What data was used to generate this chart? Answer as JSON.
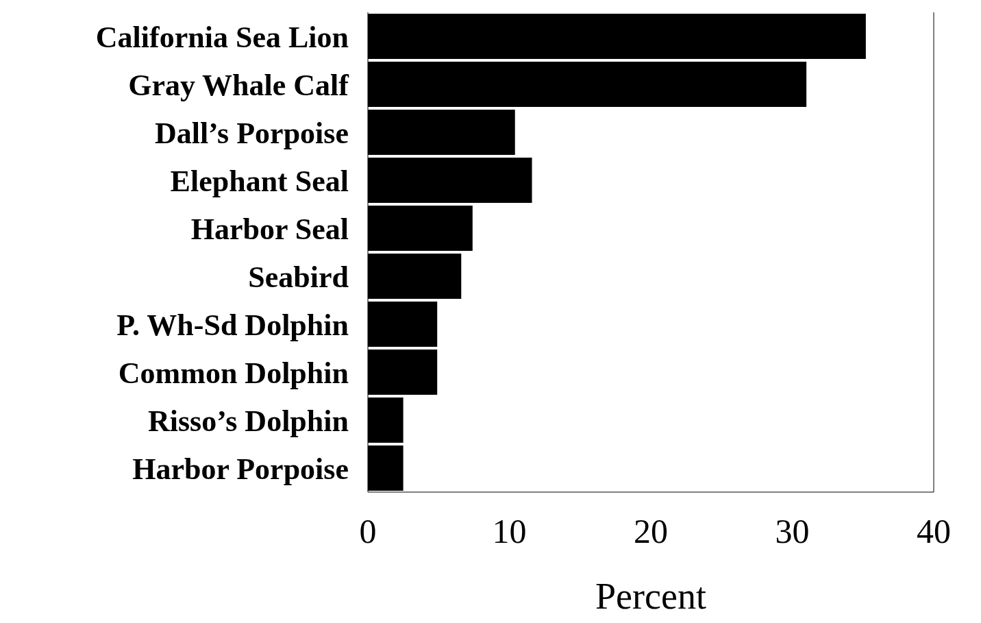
{
  "chart_data": {
    "type": "bar",
    "orientation": "horizontal",
    "xlabel": "Percent",
    "categories": [
      "California Sea Lion",
      "Gray Whale Calf",
      "Dall’s Porpoise",
      "Elephant Seal",
      "Harbor Seal",
      "Seabird",
      "P. Wh-Sd Dolphin",
      "Common Dolphin",
      "Risso’s Dolphin",
      "Harbor Porpoise"
    ],
    "values": [
      35.2,
      31.0,
      10.4,
      11.6,
      7.4,
      6.6,
      4.9,
      4.9,
      2.5,
      2.5
    ],
    "color": "#000000",
    "xlim": [
      0,
      40
    ],
    "xticks": [
      0,
      10,
      20,
      30,
      40
    ],
    "grid": false
  }
}
